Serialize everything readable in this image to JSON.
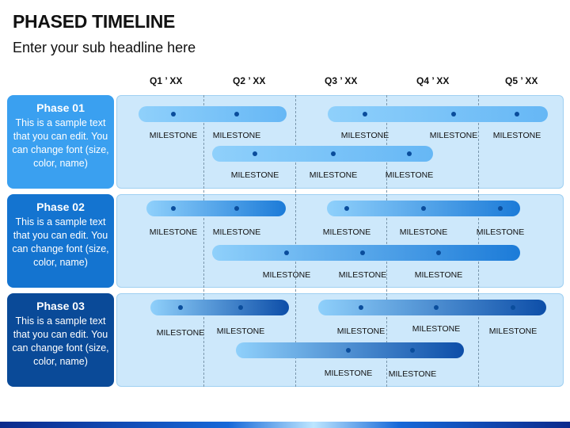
{
  "header": {
    "title": "PHASED TIMELINE",
    "subtitle": "Enter your sub headline here"
  },
  "quarters": [
    "Q1 ’ XX",
    "Q2 ’ XX",
    "Q3 ’ XX",
    "Q4 ’ XX",
    "Q5 ’ XX"
  ],
  "phases": [
    {
      "title": "Phase 01",
      "description": "This is a sample text that you can edit. You can change font (size, color, name)",
      "color": "#3aa0f0",
      "bar_gradient": [
        "#66b7f5",
        "#8fd0fb"
      ]
    },
    {
      "title": "Phase 02",
      "description": "This is a sample text that you can edit. You can change font (size, color, name)",
      "color": "#1474d0",
      "bar_gradient": [
        "#8fd0fb",
        "#1c7bd8"
      ]
    },
    {
      "title": "Phase 03",
      "description": "This is a sample text that you can edit. You can change font (size, color, name)",
      "color": "#0a4a98",
      "bar_gradient": [
        "#8fd0fb",
        "#0d4ea8"
      ]
    }
  ],
  "milestone_label": "MILESTONE",
  "footer_colors": [
    "#0b2a8c",
    "#1668d8",
    "#bde6ff"
  ]
}
